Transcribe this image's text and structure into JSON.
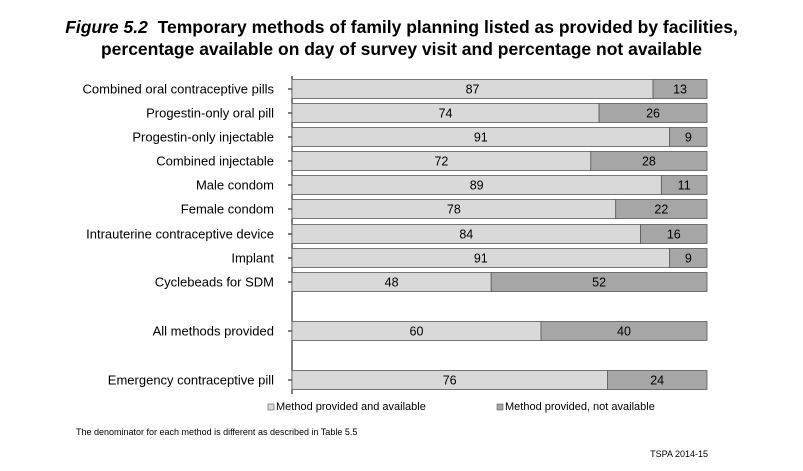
{
  "title": {
    "figure_label": "Figure 5.2",
    "line1": "Temporary methods of family planning listed as provided by facilities,",
    "line2": "percentage available on day of survey visit and percentage not available"
  },
  "footnote": "The denominator for each method is different as described in Table 5.5",
  "source": "TSPA 2014-15",
  "colors": {
    "available": "#d9d9d9",
    "not_available": "#a6a6a6",
    "border": "#595959"
  },
  "chart_data": {
    "type": "bar",
    "orientation": "horizontal",
    "stacked": true,
    "categories": [
      "Combined oral contraceptive pills",
      "Progestin-only oral pill",
      "Progestin-only injectable",
      "Combined injectable",
      "Male condom",
      "Female condom",
      "Intrauterine contraceptive device",
      "Implant",
      "Cyclebeads for SDM",
      "All methods provided",
      "Emergency contraceptive pill"
    ],
    "series": [
      {
        "name": "Method provided and available",
        "values": [
          87,
          74,
          91,
          72,
          89,
          78,
          84,
          91,
          48,
          60,
          76
        ]
      },
      {
        "name": "Method provided, not available",
        "values": [
          13,
          26,
          9,
          28,
          11,
          22,
          16,
          9,
          52,
          40,
          24
        ]
      }
    ],
    "xlim": [
      0,
      100
    ],
    "legend_position": "bottom",
    "grid": false
  }
}
